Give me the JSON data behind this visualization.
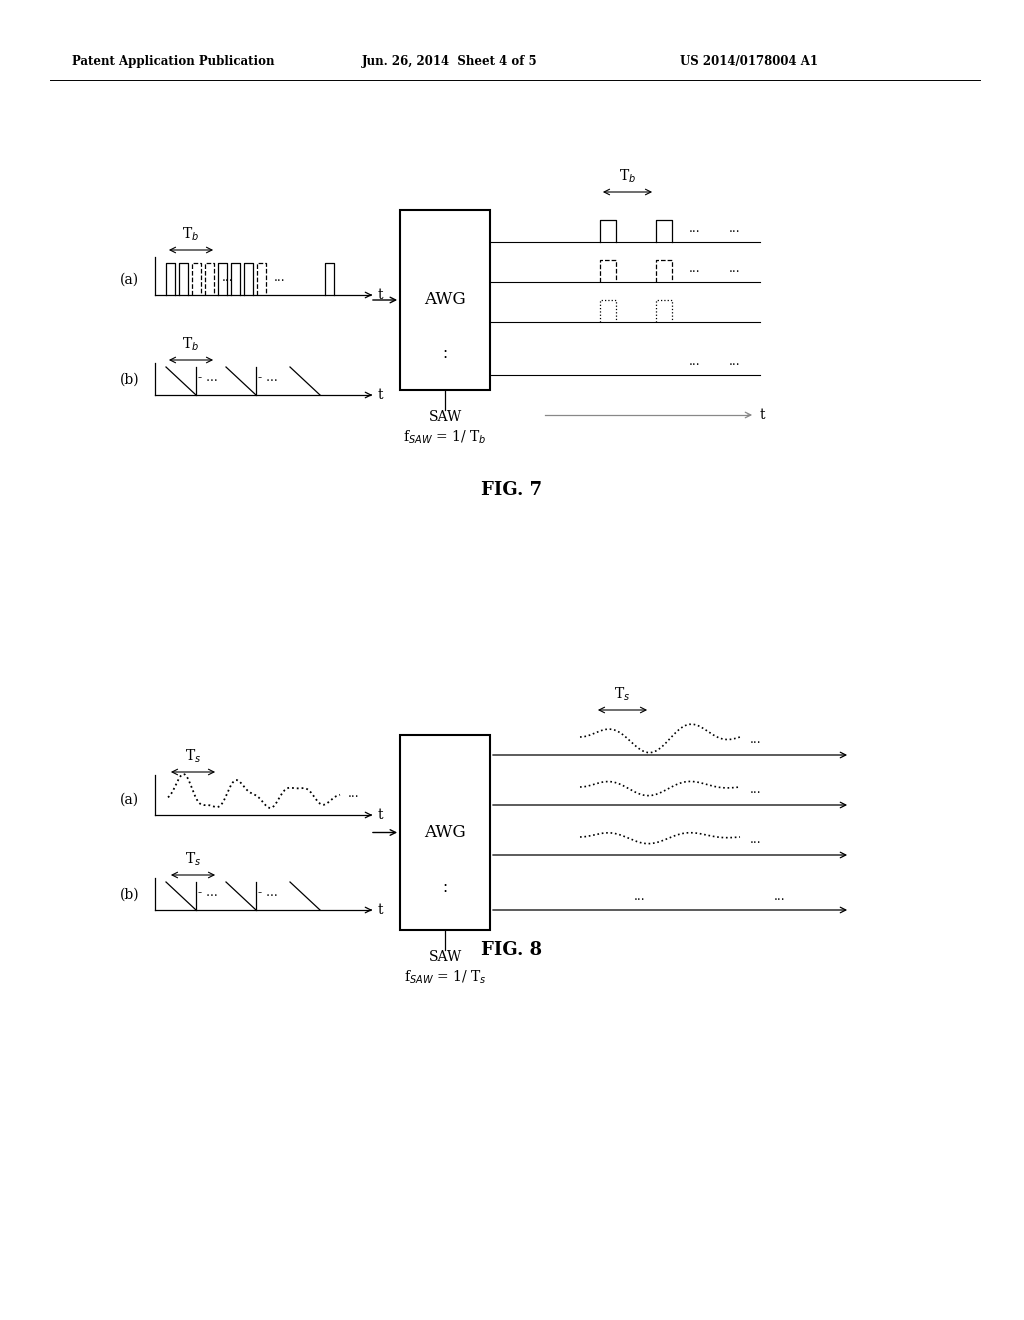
{
  "background_color": "#ffffff",
  "header_left": "Patent Application Publication",
  "header_mid": "Jun. 26, 2014  Sheet 4 of 5",
  "header_right": "US 2014/0178004 A1"
}
